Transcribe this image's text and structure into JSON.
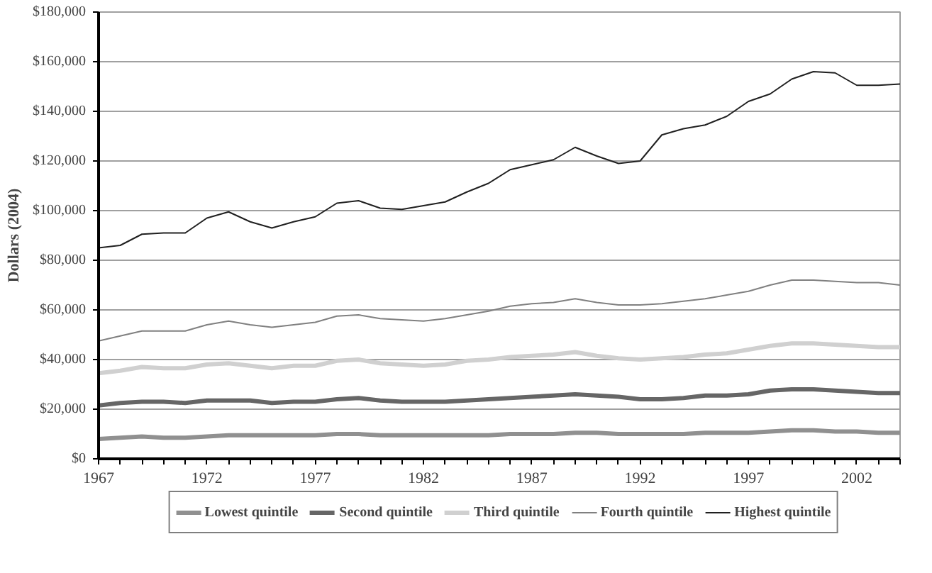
{
  "chart_data": {
    "type": "line",
    "ylabel": "Dollars (2004)",
    "x": [
      1967,
      1968,
      1969,
      1970,
      1971,
      1972,
      1973,
      1974,
      1975,
      1976,
      1977,
      1978,
      1979,
      1980,
      1981,
      1982,
      1983,
      1984,
      1985,
      1986,
      1987,
      1988,
      1989,
      1990,
      1991,
      1992,
      1993,
      1994,
      1995,
      1996,
      1997,
      1998,
      1999,
      2000,
      2001,
      2002,
      2003,
      2004
    ],
    "series": [
      {
        "name": "Lowest quintile",
        "color": "#909090",
        "values": [
          8000,
          8500,
          9000,
          8500,
          8500,
          9000,
          9500,
          9500,
          9500,
          9500,
          9500,
          10000,
          10000,
          9500,
          9500,
          9500,
          9500,
          9500,
          9500,
          10000,
          10000,
          10000,
          10500,
          10500,
          10000,
          10000,
          10000,
          10000,
          10500,
          10500,
          10500,
          11000,
          11500,
          11500,
          11000,
          11000,
          10500,
          10500
        ]
      },
      {
        "name": "Second quintile",
        "color": "#666666",
        "values": [
          21500,
          22500,
          23000,
          23000,
          22500,
          23500,
          23500,
          23500,
          22500,
          23000,
          23000,
          24000,
          24500,
          23500,
          23000,
          23000,
          23000,
          23500,
          24000,
          24500,
          25000,
          25500,
          26000,
          25500,
          25000,
          24000,
          24000,
          24500,
          25500,
          25500,
          26000,
          27500,
          28000,
          28000,
          27500,
          27000,
          26500,
          26500
        ]
      },
      {
        "name": "Third quintile",
        "color": "#d0d0d0",
        "values": [
          34500,
          35500,
          37000,
          36500,
          36500,
          38000,
          38500,
          37500,
          36500,
          37500,
          37500,
          39500,
          40000,
          38500,
          38000,
          37500,
          38000,
          39500,
          40000,
          41000,
          41500,
          42000,
          43000,
          41500,
          40500,
          40000,
          40500,
          41000,
          42000,
          42500,
          44000,
          45500,
          46500,
          46500,
          46000,
          45500,
          45000,
          45000
        ]
      },
      {
        "name": "Fourth quintile",
        "color": "#808080",
        "values": [
          47500,
          49500,
          51500,
          51500,
          51500,
          54000,
          55500,
          54000,
          53000,
          54000,
          55000,
          57500,
          58000,
          56500,
          56000,
          55500,
          56500,
          58000,
          59500,
          61500,
          62500,
          63000,
          64500,
          63000,
          62000,
          62000,
          62500,
          63500,
          64500,
          66000,
          67500,
          70000,
          72000,
          72000,
          71500,
          71000,
          71000,
          70000
        ]
      },
      {
        "name": "Highest quintile",
        "color": "#202020",
        "values": [
          85000,
          86000,
          90500,
          91000,
          91000,
          97000,
          99500,
          95500,
          93000,
          95500,
          97500,
          103000,
          104000,
          101000,
          100500,
          102000,
          103500,
          107500,
          111000,
          116500,
          118500,
          120500,
          125500,
          122000,
          119000,
          120000,
          130500,
          133000,
          134500,
          138000,
          144000,
          147000,
          153000,
          156000,
          155500,
          150500,
          150500,
          151000
        ]
      }
    ],
    "xlim": [
      1967,
      2004
    ],
    "xticks": [
      1967,
      {
        "value": 1968,
        "label": null
      },
      {
        "value": 1969,
        "label": null
      },
      {
        "value": 1970,
        "label": null
      },
      {
        "value": 1971,
        "label": null
      },
      1972,
      {
        "value": 1973,
        "label": null
      },
      {
        "value": 1974,
        "label": null
      },
      {
        "value": 1975,
        "label": null
      },
      {
        "value": 1976,
        "label": null
      },
      1977,
      {
        "value": 1978,
        "label": null
      },
      {
        "value": 1979,
        "label": null
      },
      {
        "value": 1980,
        "label": null
      },
      {
        "value": 1981,
        "label": null
      },
      1982,
      {
        "value": 1983,
        "label": null
      },
      {
        "value": 1984,
        "label": null
      },
      {
        "value": 1985,
        "label": null
      },
      {
        "value": 1986,
        "label": null
      },
      1987,
      {
        "value": 1988,
        "label": null
      },
      {
        "value": 1989,
        "label": null
      },
      {
        "value": 1990,
        "label": null
      },
      {
        "value": 1991,
        "label": null
      },
      1992,
      {
        "value": 1993,
        "label": null
      },
      {
        "value": 1994,
        "label": null
      },
      {
        "value": 1995,
        "label": null
      },
      {
        "value": 1996,
        "label": null
      },
      1997,
      {
        "value": 1998,
        "label": null
      },
      {
        "value": 1999,
        "label": null
      },
      {
        "value": 2000,
        "label": null
      },
      {
        "value": 2001,
        "label": null
      },
      2002,
      {
        "value": 2003,
        "label": null
      },
      {
        "value": 2004,
        "label": null
      }
    ],
    "ylim": [
      0,
      180000
    ],
    "yticks": [
      {
        "value": 0,
        "label": "$0"
      },
      {
        "value": 20000,
        "label": "$20,000"
      },
      {
        "value": 40000,
        "label": "$40,000"
      },
      {
        "value": 60000,
        "label": "$60,000"
      },
      {
        "value": 80000,
        "label": "$80,000"
      },
      {
        "value": 100000,
        "label": "$100,000"
      },
      {
        "value": 120000,
        "label": "$120,000"
      },
      {
        "value": 140000,
        "label": "$140,000"
      },
      {
        "value": 160000,
        "label": "$160,000"
      },
      {
        "value": 180000,
        "label": "$180,000"
      }
    ],
    "grid": "y",
    "legend": "bottom",
    "marker": "none",
    "line_style": "solid"
  }
}
